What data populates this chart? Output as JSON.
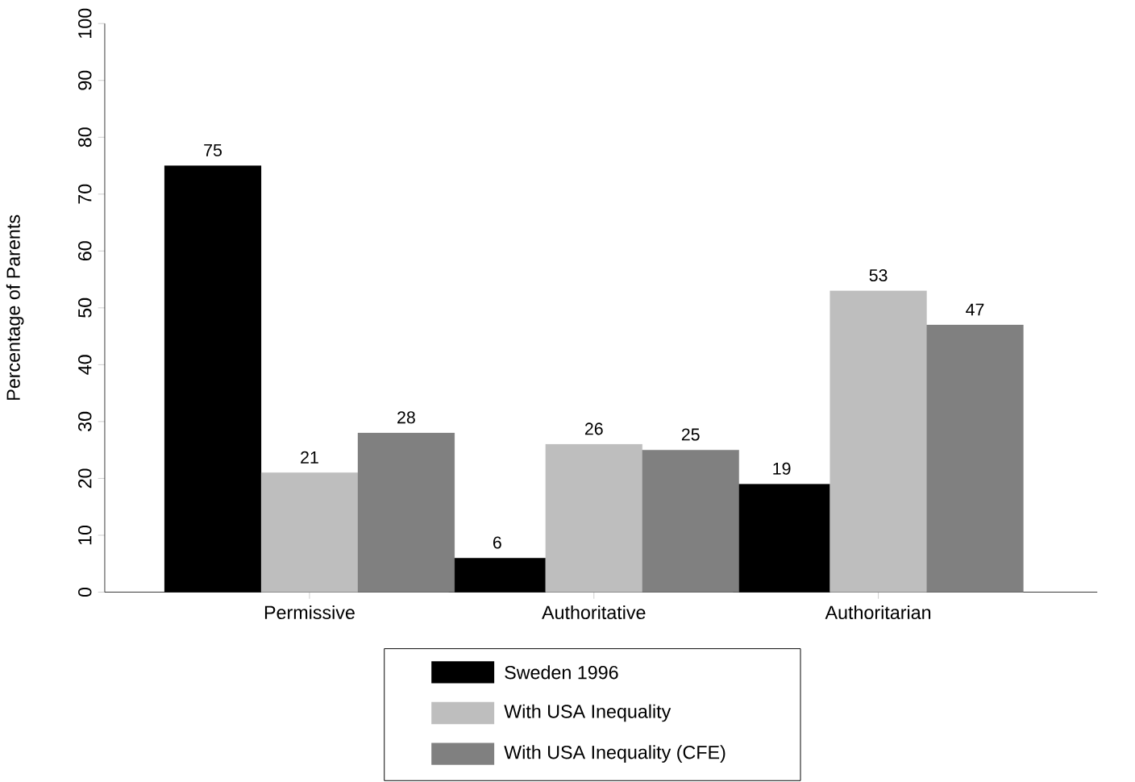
{
  "chart_data": {
    "type": "bar",
    "ylabel": "Percentage of Parents",
    "categories": [
      "Permissive",
      "Authoritative",
      "Authoritarian"
    ],
    "series": [
      {
        "name": "Sweden 1996",
        "color": "#000000",
        "values": [
          75,
          6,
          19
        ]
      },
      {
        "name": "With USA Inequality",
        "color": "#bebebe",
        "values": [
          21,
          26,
          53
        ]
      },
      {
        "name": "With USA Inequality (CFE)",
        "color": "#808080",
        "values": [
          28,
          25,
          47
        ]
      }
    ],
    "ylim": [
      0,
      100
    ],
    "yticks": [
      0,
      10,
      20,
      30,
      40,
      50,
      60,
      70,
      80,
      90,
      100
    ],
    "data_labels": true,
    "legend": "bottom",
    "grid": false
  }
}
